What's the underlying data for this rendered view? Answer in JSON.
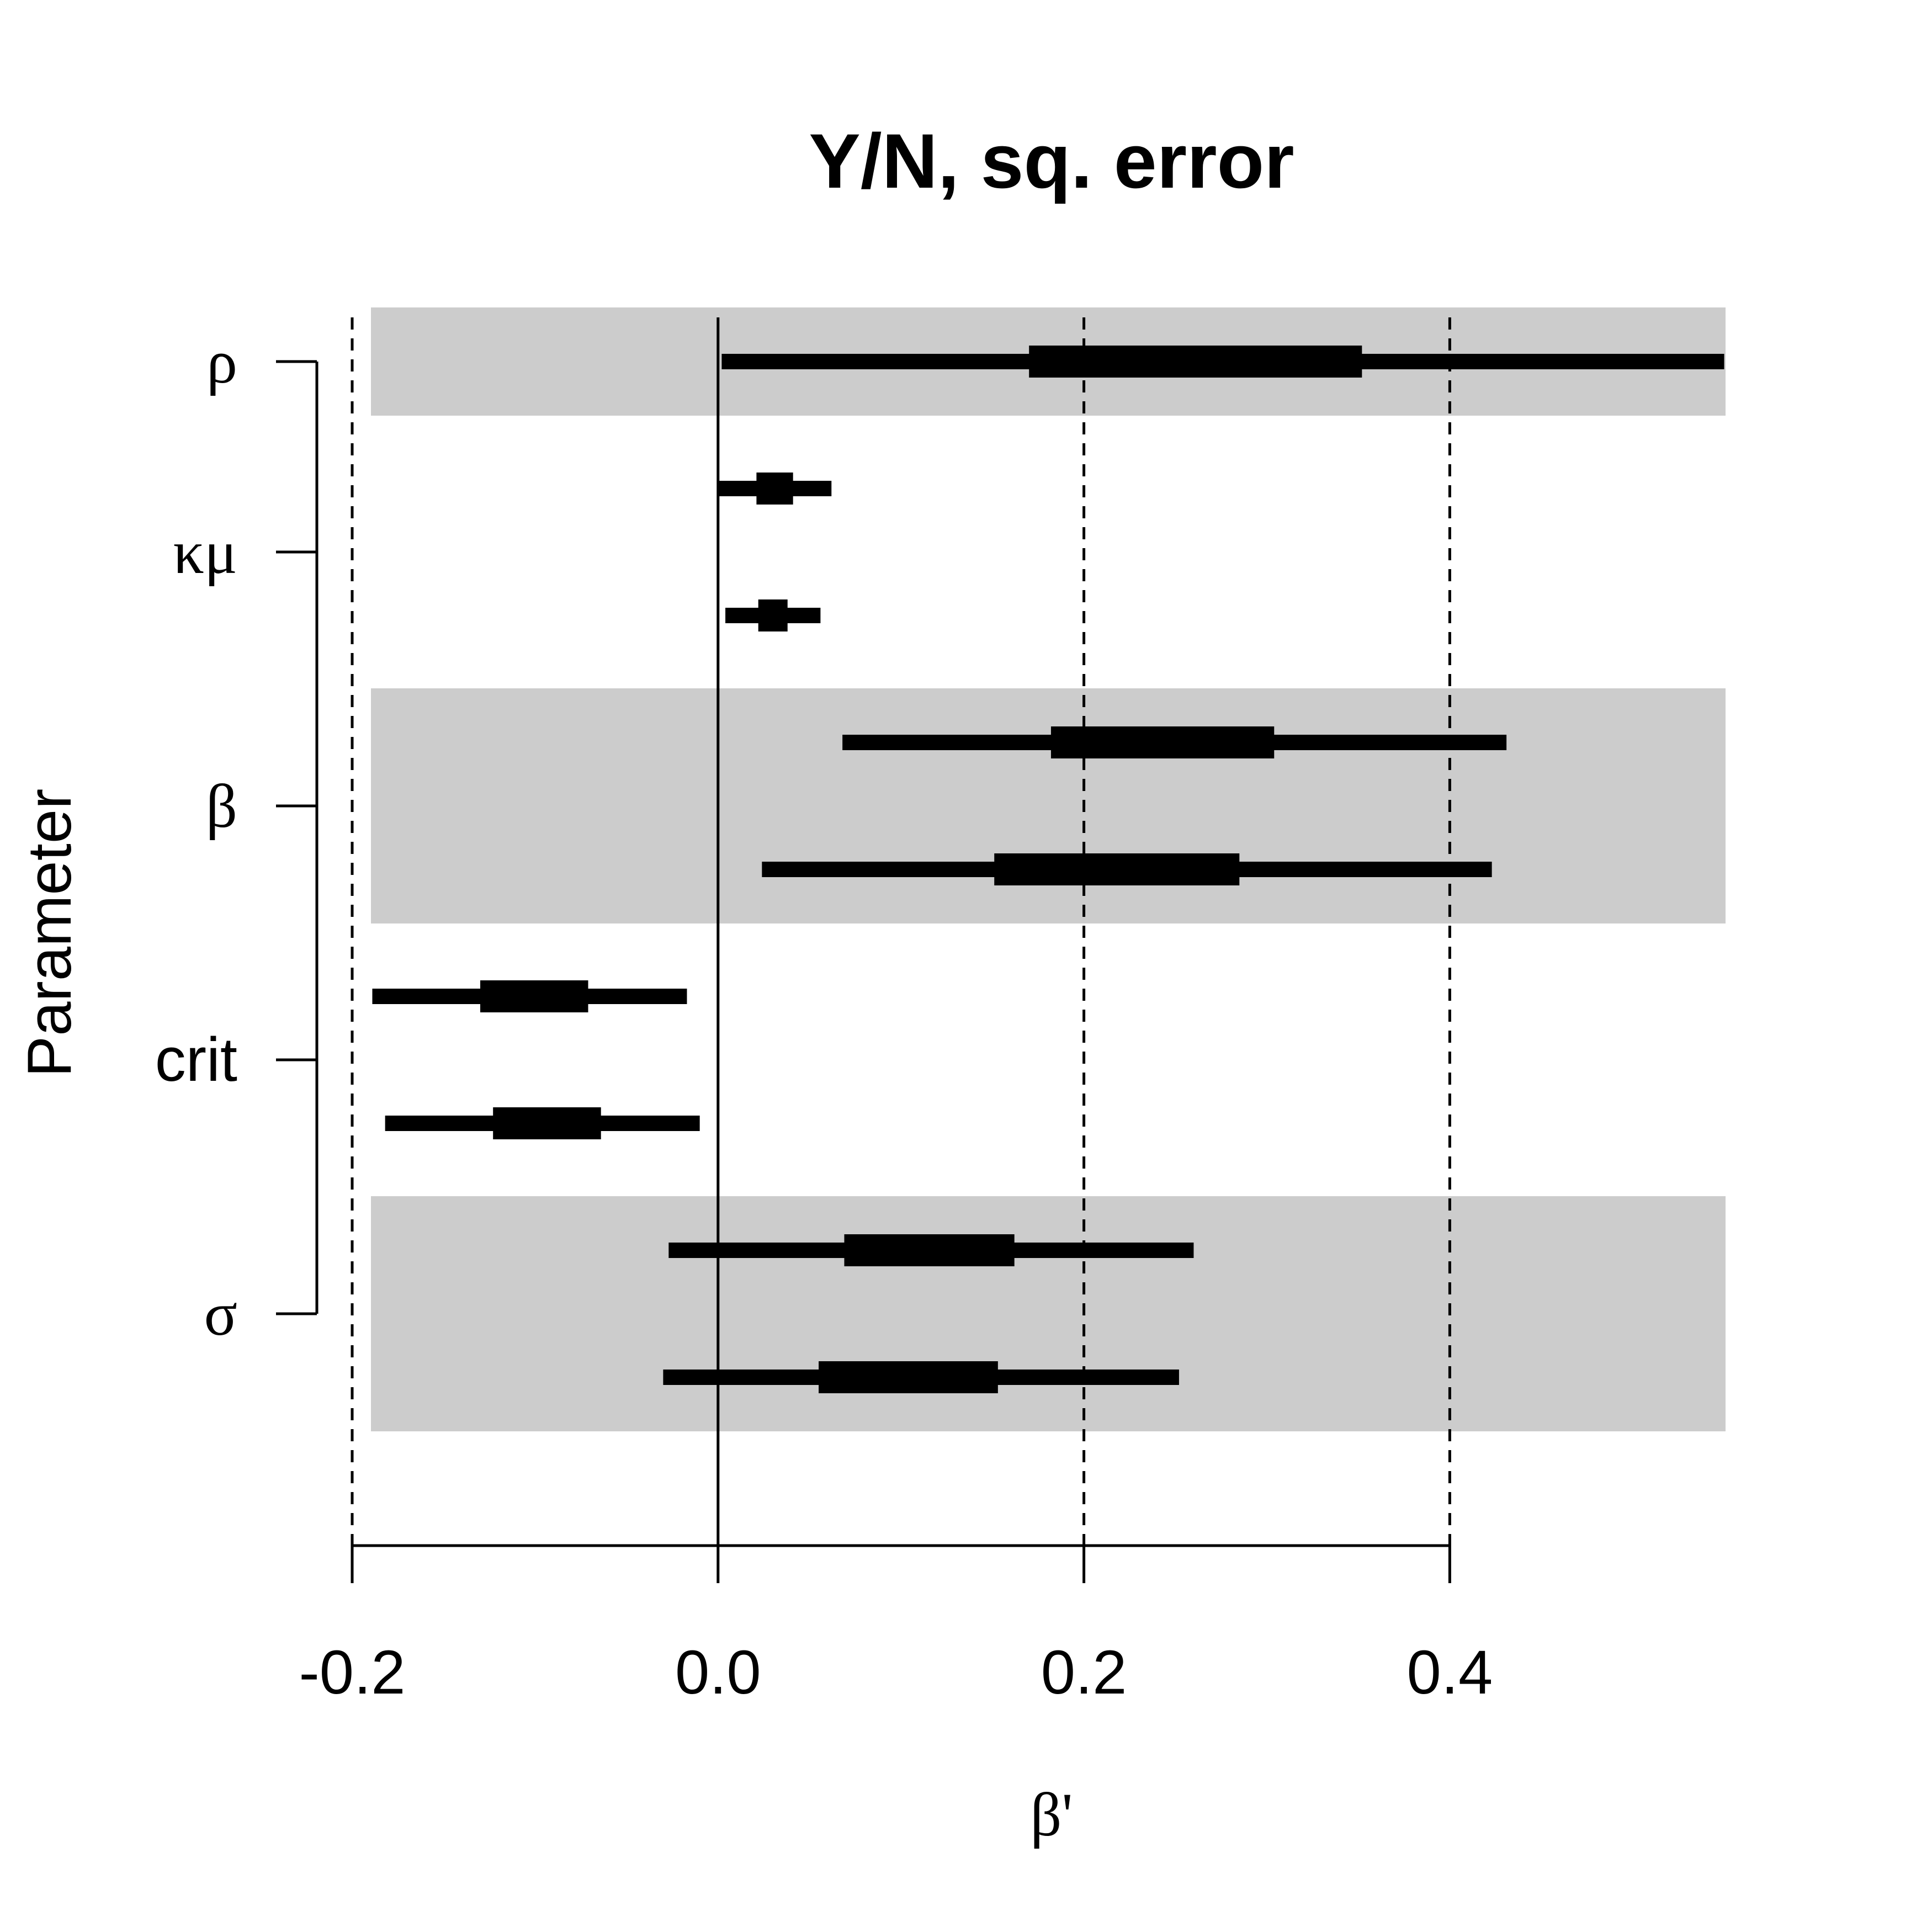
{
  "chart_data": {
    "type": "forest",
    "title": "Y/N, sq. error",
    "xlabel": "β'",
    "ylabel": "Parameter",
    "xlim": [
      -0.2,
      0.55
    ],
    "x_ticks": [
      -0.2,
      0.0,
      0.2,
      0.4
    ],
    "x_tick_labels": [
      "-0.2",
      "0.0",
      "0.2",
      "0.4"
    ],
    "dashed_reference_lines": [
      -0.2,
      0.2,
      0.4
    ],
    "solid_reference_line": 0.0,
    "groups": [
      {
        "label": "ρ",
        "shaded": true,
        "rows": [
          {
            "outer": [
              0.002,
              0.55
            ],
            "inner": [
              0.17,
              0.352
            ]
          }
        ]
      },
      {
        "label": "κμ",
        "shaded": false,
        "rows": [
          {
            "outer": [
              0.0,
              0.062
            ],
            "inner": [
              0.021,
              0.041
            ]
          },
          {
            "outer": [
              0.004,
              0.056
            ],
            "inner": [
              0.022,
              0.038
            ]
          }
        ]
      },
      {
        "label": "β",
        "shaded": true,
        "rows": [
          {
            "outer": [
              0.068,
              0.431
            ],
            "inner": [
              0.182,
              0.304
            ]
          },
          {
            "outer": [
              0.024,
              0.423
            ],
            "inner": [
              0.151,
              0.285
            ]
          }
        ]
      },
      {
        "label": "crit",
        "shaded": false,
        "rows": [
          {
            "outer": [
              -0.189,
              -0.017
            ],
            "inner": [
              -0.13,
              -0.071
            ]
          },
          {
            "outer": [
              -0.182,
              -0.01
            ],
            "inner": [
              -0.123,
              -0.064
            ]
          }
        ]
      },
      {
        "label": "σ",
        "shaded": true,
        "rows": [
          {
            "outer": [
              -0.027,
              0.26
            ],
            "inner": [
              0.069,
              0.162
            ]
          },
          {
            "outer": [
              -0.03,
              0.252
            ],
            "inner": [
              0.055,
              0.153
            ]
          }
        ]
      }
    ],
    "colors": {
      "shade": "#cccccc",
      "ink": "#000000"
    }
  }
}
